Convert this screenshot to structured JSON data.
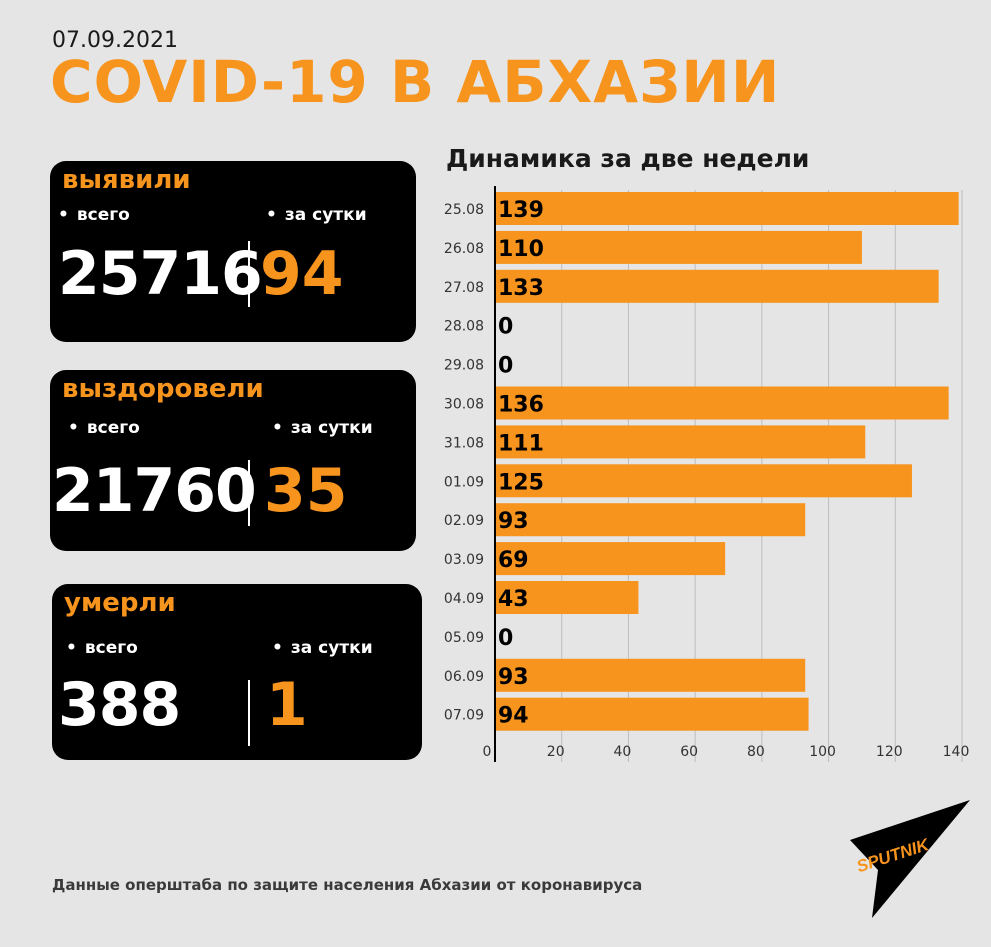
{
  "header": {
    "date": "07.09.2021",
    "title": "COVID-19 В АБХАЗИИ"
  },
  "cards": [
    {
      "title": "выявили",
      "total_label": "всего",
      "day_label": "за сутки",
      "total": "25716",
      "day": "94"
    },
    {
      "title": "выздоровели",
      "total_label": "всего",
      "day_label": "за сутки",
      "total": "21760",
      "day": "35"
    },
    {
      "title": "умерли",
      "total_label": "всего",
      "day_label": "за сутки",
      "total": "388",
      "day": "1"
    }
  ],
  "chart_data": {
    "type": "bar",
    "orientation": "horizontal",
    "title": "Динамика за две недели",
    "categories": [
      "25.08",
      "26.08",
      "27.08",
      "28.08",
      "29.08",
      "30.08",
      "31.08",
      "01.09",
      "02.09",
      "03.09",
      "04.09",
      "05.09",
      "06.09",
      "07.09"
    ],
    "values": [
      139,
      110,
      133,
      0,
      0,
      136,
      111,
      125,
      93,
      69,
      43,
      0,
      93,
      94
    ],
    "xlim": [
      0,
      140
    ],
    "xticks": [
      0,
      20,
      40,
      60,
      80,
      100,
      120,
      140
    ],
    "grid": true,
    "bar_color": "#f7941d"
  },
  "footer": {
    "source": "Данные оперштаба по защите населения Абхазии от коронавируса",
    "logo_text": "SPUTNIK"
  },
  "colors": {
    "accent": "#f7941d",
    "background": "#e5e5e5",
    "card": "#000000"
  }
}
